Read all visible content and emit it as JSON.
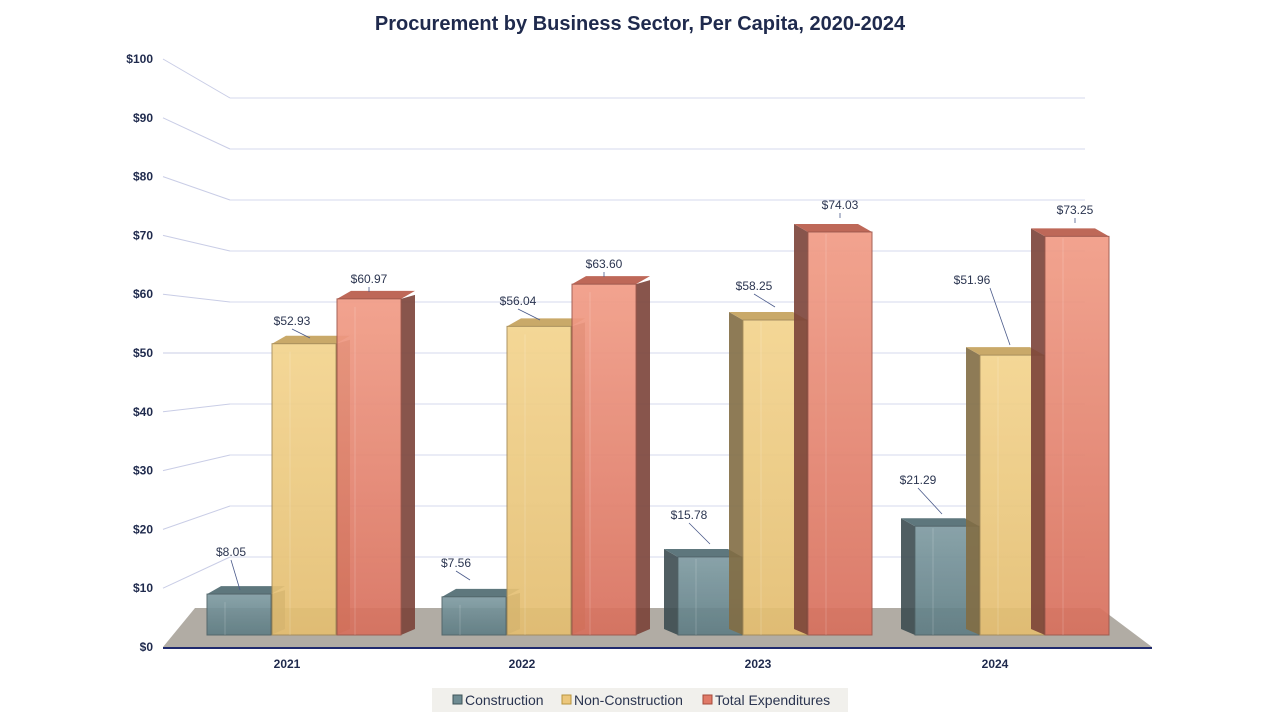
{
  "chart_data": {
    "type": "bar",
    "title": "Procurement by Business Sector, Per Capita, 2020-2024",
    "categories": [
      "2021",
      "2022",
      "2023",
      "2024"
    ],
    "series": [
      {
        "name": "Construction",
        "values": [
          8.05,
          7.56,
          15.78,
          21.29
        ],
        "labels": [
          "$8.05",
          "$7.56",
          "$15.78",
          "$21.29"
        ],
        "color": "#6f8c93"
      },
      {
        "name": "Non-Construction",
        "values": [
          52.93,
          56.04,
          58.25,
          51.96
        ],
        "labels": [
          "$52.93",
          "$56.04",
          "$58.25",
          "$51.96"
        ],
        "color": "#ecc77c"
      },
      {
        "name": "Total Expenditures",
        "values": [
          60.97,
          63.6,
          74.03,
          73.25
        ],
        "labels": [
          "$60.97",
          "$63.60",
          "$74.03",
          "$73.25"
        ],
        "color": "#e07a68"
      }
    ],
    "yticks": [
      "$0",
      "$10",
      "$20",
      "$30",
      "$40",
      "$50",
      "$60",
      "$70",
      "$80",
      "$90",
      "$100"
    ],
    "ylim": [
      0,
      100
    ],
    "grid": true,
    "legend_position": "bottom-center",
    "xlabel": "",
    "ylabel": ""
  }
}
